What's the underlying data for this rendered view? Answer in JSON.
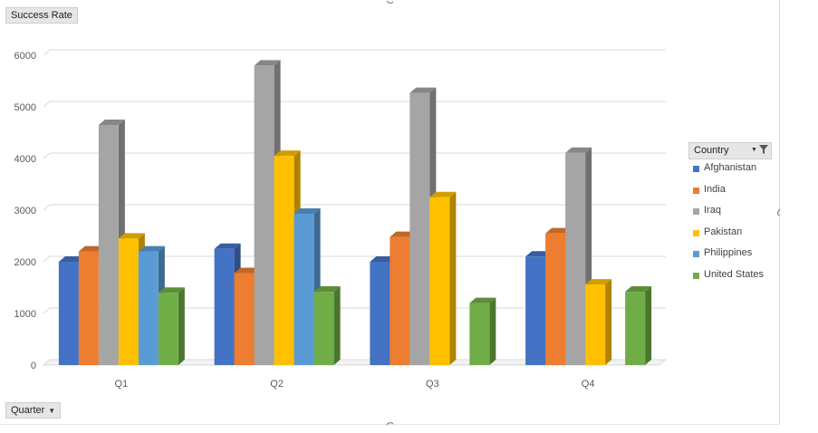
{
  "value_field_button": "Success Rate",
  "axis_field_button": "Quarter",
  "legend_field_button": "Country",
  "chart_data": {
    "type": "bar",
    "style": "3D clustered column",
    "categories": [
      "Q1",
      "Q2",
      "Q3",
      "Q4"
    ],
    "series": [
      {
        "name": "Afghanistan",
        "color": "#4472C4",
        "values": [
          2000,
          2250,
          2000,
          2100
        ]
      },
      {
        "name": "India",
        "color": "#ED7D31",
        "values": [
          2200,
          1780,
          2480,
          2550
        ]
      },
      {
        "name": "Iraq",
        "color": "#A5A5A5",
        "values": [
          4650,
          5800,
          5270,
          4110
        ]
      },
      {
        "name": "Pakistan",
        "color": "#FFC000",
        "values": [
          2450,
          4050,
          3250,
          1560
        ]
      },
      {
        "name": "Philippines",
        "color": "#5B9BD5",
        "values": [
          2200,
          2930,
          null,
          null
        ]
      },
      {
        "name": "United States",
        "color": "#70AD47",
        "values": [
          1400,
          1420,
          1200,
          1420
        ]
      }
    ],
    "y_ticks": [
      "0",
      "1000",
      "2000",
      "3000",
      "4000",
      "5000",
      "6000"
    ],
    "ylim": [
      0,
      6000
    ],
    "grid": true,
    "legend_position": "right",
    "title": "",
    "xlabel": "",
    "ylabel": ""
  }
}
